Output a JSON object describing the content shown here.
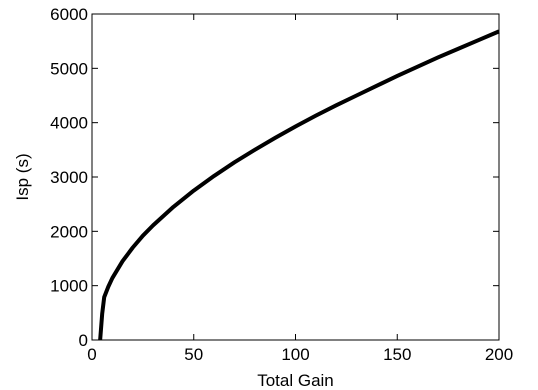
{
  "chart_data": {
    "type": "line",
    "xlabel": "Total Gain",
    "ylabel": "Isp (s)",
    "xlim": [
      0,
      200
    ],
    "ylim": [
      0,
      6000
    ],
    "xticks": [
      0,
      50,
      100,
      150,
      200
    ],
    "yticks": [
      0,
      1000,
      2000,
      3000,
      4000,
      5000,
      6000
    ],
    "grid": false,
    "series": [
      {
        "color": "#000000",
        "x": [
          4,
          5,
          6,
          8,
          10,
          15,
          20,
          25,
          30,
          40,
          50,
          60,
          70,
          80,
          90,
          100,
          110,
          120,
          130,
          140,
          150,
          160,
          170,
          180,
          190,
          200
        ],
        "y": [
          0,
          480,
          790,
          980,
          1140,
          1450,
          1700,
          1920,
          2110,
          2450,
          2750,
          3020,
          3270,
          3500,
          3720,
          3930,
          4130,
          4320,
          4500,
          4680,
          4860,
          5030,
          5200,
          5360,
          5520,
          5680
        ]
      }
    ]
  }
}
